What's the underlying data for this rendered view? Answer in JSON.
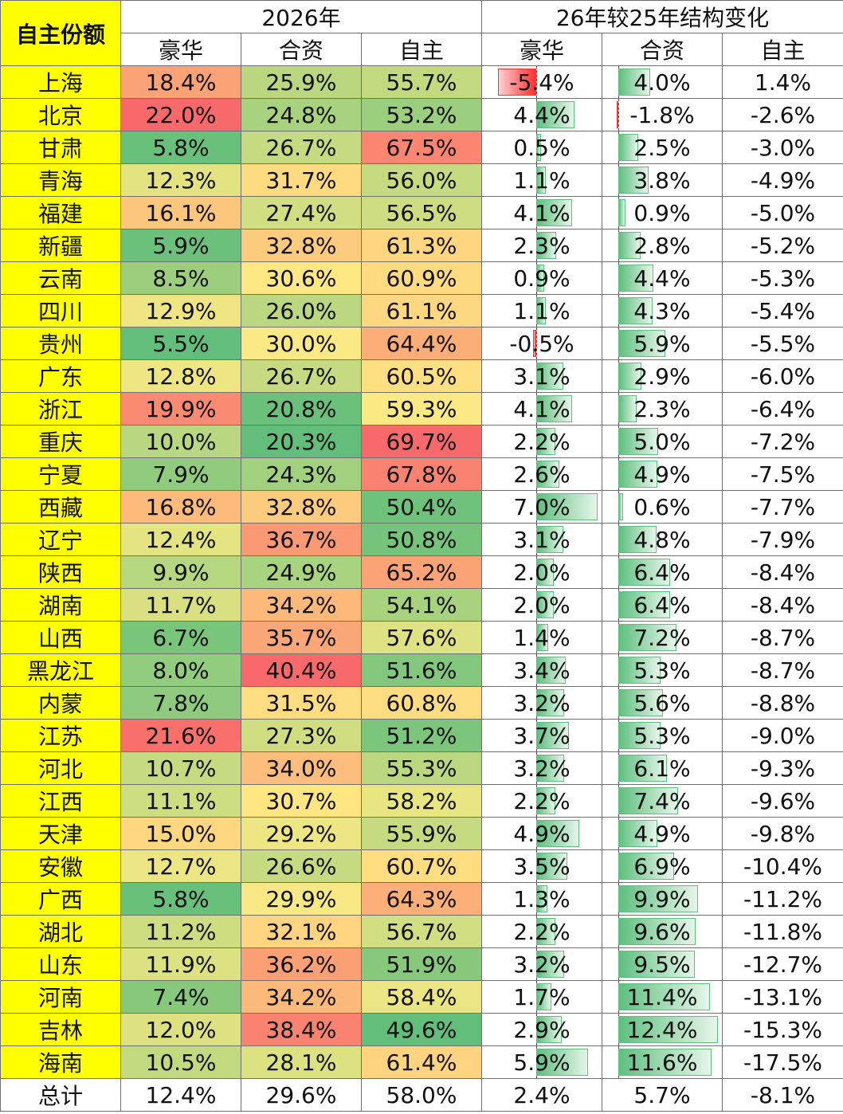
{
  "header": {
    "corner_label": "自主份额",
    "group_2026": "2026年",
    "group_change": "26年较25年结构变化",
    "columns_2026": [
      "豪华",
      "合资",
      "自主"
    ],
    "columns_change": [
      "豪华",
      "合资",
      "自主"
    ]
  },
  "colors": {
    "province_bg": "#ffff00",
    "corner_text": "#ff0000",
    "scale_low": "#63be7b",
    "scale_mid": "#ffeb84",
    "scale_high": "#f8696b",
    "bar_positive": "#63be7b",
    "bar_negative": "#ff0000"
  },
  "rows": [
    {
      "province": "上海",
      "lux": "18.4%",
      "jv": "25.9%",
      "own": "55.7%",
      "d_lux": "-5.4%",
      "d_jv": "4.0%",
      "d_own": "1.4%"
    },
    {
      "province": "北京",
      "lux": "22.0%",
      "jv": "24.8%",
      "own": "53.2%",
      "d_lux": "4.4%",
      "d_jv": "-1.8%",
      "d_own": "-2.6%"
    },
    {
      "province": "甘肃",
      "lux": "5.8%",
      "jv": "26.7%",
      "own": "67.5%",
      "d_lux": "0.5%",
      "d_jv": "2.5%",
      "d_own": "-3.0%"
    },
    {
      "province": "青海",
      "lux": "12.3%",
      "jv": "31.7%",
      "own": "56.0%",
      "d_lux": "1.1%",
      "d_jv": "3.8%",
      "d_own": "-4.9%"
    },
    {
      "province": "福建",
      "lux": "16.1%",
      "jv": "27.4%",
      "own": "56.5%",
      "d_lux": "4.1%",
      "d_jv": "0.9%",
      "d_own": "-5.0%"
    },
    {
      "province": "新疆",
      "lux": "5.9%",
      "jv": "32.8%",
      "own": "61.3%",
      "d_lux": "2.3%",
      "d_jv": "2.8%",
      "d_own": "-5.2%"
    },
    {
      "province": "云南",
      "lux": "8.5%",
      "jv": "30.6%",
      "own": "60.9%",
      "d_lux": "0.9%",
      "d_jv": "4.4%",
      "d_own": "-5.3%"
    },
    {
      "province": "四川",
      "lux": "12.9%",
      "jv": "26.0%",
      "own": "61.1%",
      "d_lux": "1.1%",
      "d_jv": "4.3%",
      "d_own": "-5.4%"
    },
    {
      "province": "贵州",
      "lux": "5.5%",
      "jv": "30.0%",
      "own": "64.4%",
      "d_lux": "-0.5%",
      "d_jv": "5.9%",
      "d_own": "-5.5%"
    },
    {
      "province": "广东",
      "lux": "12.8%",
      "jv": "26.7%",
      "own": "60.5%",
      "d_lux": "3.1%",
      "d_jv": "2.9%",
      "d_own": "-6.0%"
    },
    {
      "province": "浙江",
      "lux": "19.9%",
      "jv": "20.8%",
      "own": "59.3%",
      "d_lux": "4.1%",
      "d_jv": "2.3%",
      "d_own": "-6.4%"
    },
    {
      "province": "重庆",
      "lux": "10.0%",
      "jv": "20.3%",
      "own": "69.7%",
      "d_lux": "2.2%",
      "d_jv": "5.0%",
      "d_own": "-7.2%"
    },
    {
      "province": "宁夏",
      "lux": "7.9%",
      "jv": "24.3%",
      "own": "67.8%",
      "d_lux": "2.6%",
      "d_jv": "4.9%",
      "d_own": "-7.5%"
    },
    {
      "province": "西藏",
      "lux": "16.8%",
      "jv": "32.8%",
      "own": "50.4%",
      "d_lux": "7.0%",
      "d_jv": "0.6%",
      "d_own": "-7.7%"
    },
    {
      "province": "辽宁",
      "lux": "12.4%",
      "jv": "36.7%",
      "own": "50.8%",
      "d_lux": "3.1%",
      "d_jv": "4.8%",
      "d_own": "-7.9%"
    },
    {
      "province": "陕西",
      "lux": "9.9%",
      "jv": "24.9%",
      "own": "65.2%",
      "d_lux": "2.0%",
      "d_jv": "6.4%",
      "d_own": "-8.4%"
    },
    {
      "province": "湖南",
      "lux": "11.7%",
      "jv": "34.2%",
      "own": "54.1%",
      "d_lux": "2.0%",
      "d_jv": "6.4%",
      "d_own": "-8.4%"
    },
    {
      "province": "山西",
      "lux": "6.7%",
      "jv": "35.7%",
      "own": "57.6%",
      "d_lux": "1.4%",
      "d_jv": "7.2%",
      "d_own": "-8.7%"
    },
    {
      "province": "黑龙江",
      "lux": "8.0%",
      "jv": "40.4%",
      "own": "51.6%",
      "d_lux": "3.4%",
      "d_jv": "5.3%",
      "d_own": "-8.7%"
    },
    {
      "province": "内蒙",
      "lux": "7.8%",
      "jv": "31.5%",
      "own": "60.8%",
      "d_lux": "3.2%",
      "d_jv": "5.6%",
      "d_own": "-8.8%"
    },
    {
      "province": "江苏",
      "lux": "21.6%",
      "jv": "27.3%",
      "own": "51.2%",
      "d_lux": "3.7%",
      "d_jv": "5.3%",
      "d_own": "-9.0%"
    },
    {
      "province": "河北",
      "lux": "10.7%",
      "jv": "34.0%",
      "own": "55.3%",
      "d_lux": "3.2%",
      "d_jv": "6.1%",
      "d_own": "-9.3%"
    },
    {
      "province": "江西",
      "lux": "11.1%",
      "jv": "30.7%",
      "own": "58.2%",
      "d_lux": "2.2%",
      "d_jv": "7.4%",
      "d_own": "-9.6%"
    },
    {
      "province": "天津",
      "lux": "15.0%",
      "jv": "29.2%",
      "own": "55.9%",
      "d_lux": "4.9%",
      "d_jv": "4.9%",
      "d_own": "-9.8%"
    },
    {
      "province": "安徽",
      "lux": "12.7%",
      "jv": "26.6%",
      "own": "60.7%",
      "d_lux": "3.5%",
      "d_jv": "6.9%",
      "d_own": "-10.4%"
    },
    {
      "province": "广西",
      "lux": "5.8%",
      "jv": "29.9%",
      "own": "64.3%",
      "d_lux": "1.3%",
      "d_jv": "9.9%",
      "d_own": "-11.2%"
    },
    {
      "province": "湖北",
      "lux": "11.2%",
      "jv": "32.1%",
      "own": "56.7%",
      "d_lux": "2.2%",
      "d_jv": "9.6%",
      "d_own": "-11.8%"
    },
    {
      "province": "山东",
      "lux": "11.9%",
      "jv": "36.2%",
      "own": "51.9%",
      "d_lux": "3.2%",
      "d_jv": "9.5%",
      "d_own": "-12.7%"
    },
    {
      "province": "河南",
      "lux": "7.4%",
      "jv": "34.2%",
      "own": "58.4%",
      "d_lux": "1.7%",
      "d_jv": "11.4%",
      "d_own": "-13.1%"
    },
    {
      "province": "吉林",
      "lux": "12.0%",
      "jv": "38.4%",
      "own": "49.6%",
      "d_lux": "2.9%",
      "d_jv": "12.4%",
      "d_own": "-15.3%"
    },
    {
      "province": "海南",
      "lux": "10.5%",
      "jv": "28.1%",
      "own": "61.4%",
      "d_lux": "5.9%",
      "d_jv": "11.6%",
      "d_own": "-17.5%"
    }
  ],
  "total": {
    "province": "总计",
    "lux": "12.4%",
    "jv": "29.6%",
    "own": "58.0%",
    "d_lux": "2.4%",
    "d_jv": "5.7%",
    "d_own": "-8.1%"
  }
}
